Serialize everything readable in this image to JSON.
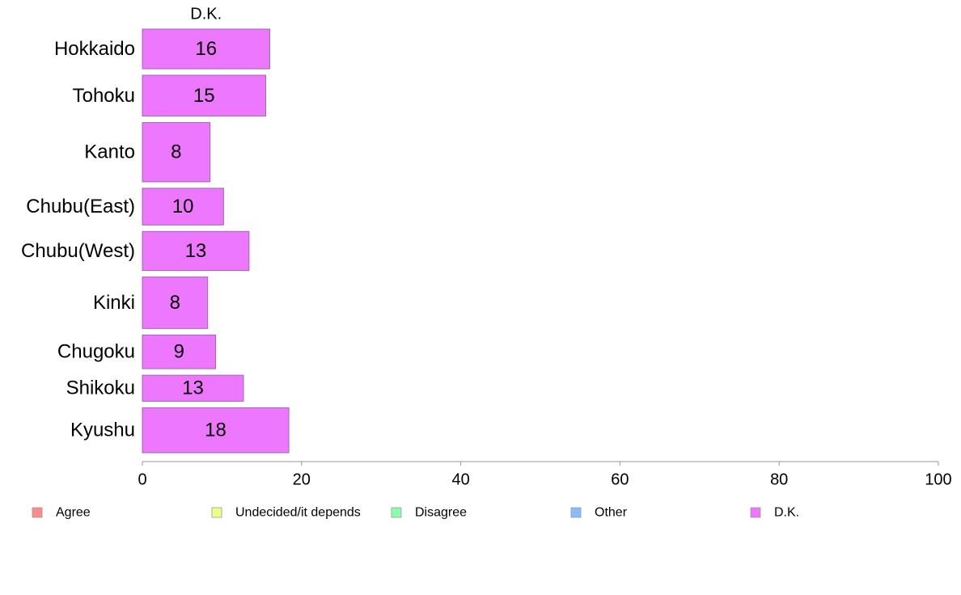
{
  "chart_data": {
    "type": "bar",
    "orientation": "horizontal",
    "panel_title": "D.K.",
    "categories": [
      "Hokkaido",
      "Tohoku",
      "Kanto",
      "Chubu(East)",
      "Chubu(West)",
      "Kinki",
      "Chugoku",
      "Shikoku",
      "Kyushu"
    ],
    "series": [
      {
        "name": "D.K.",
        "values": [
          16,
          15.5,
          8.5,
          10.2,
          13.4,
          8.2,
          9.2,
          12.7,
          18.4
        ],
        "labels": [
          "16",
          "15",
          "8",
          "10",
          "13",
          "8",
          "9",
          "13",
          "18"
        ]
      }
    ],
    "category_weights": [
      0.67,
      0.69,
      1.0,
      0.62,
      0.66,
      0.87,
      0.57,
      0.44,
      0.76
    ],
    "xlim": [
      0,
      100
    ],
    "xticks": [
      0,
      20,
      40,
      60,
      80,
      100
    ],
    "grid": false,
    "bar_color": "#ee77ff",
    "bar_stroke": "#9a6aa8",
    "axis_color": "#999999",
    "legend": {
      "position": "bottom",
      "items": [
        {
          "label": "Agree",
          "color": "#ff8a8a"
        },
        {
          "label": "Undecided/it depends",
          "color": "#eeff88"
        },
        {
          "label": "Disagree",
          "color": "#88ffaa"
        },
        {
          "label": "Other",
          "color": "#88bbff"
        },
        {
          "label": "D.K.",
          "color": "#ee77ff"
        }
      ]
    }
  }
}
